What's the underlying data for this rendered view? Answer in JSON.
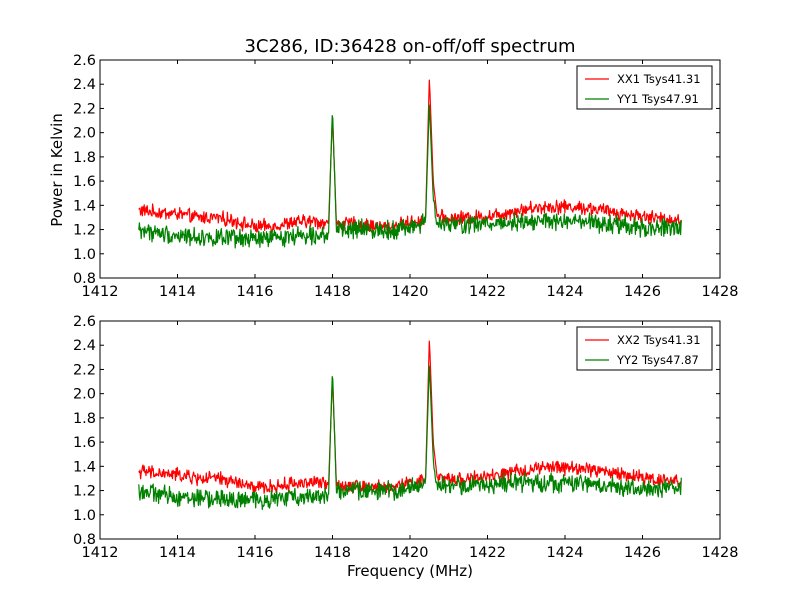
{
  "chart_data": [
    {
      "type": "line",
      "title": "3C286, ID:36428 on-off/off spectrum",
      "xlabel": "",
      "ylabel": "Power in Kelvin",
      "xlim": [
        1412,
        1428
      ],
      "ylim": [
        0.8,
        2.6
      ],
      "xticks": [
        1412,
        1414,
        1416,
        1418,
        1420,
        1422,
        1424,
        1426,
        1428
      ],
      "yticks": [
        "0.8",
        "1.0",
        "1.2",
        "1.4",
        "1.6",
        "1.8",
        "2.0",
        "2.2",
        "2.4",
        "2.6"
      ],
      "legend_position": "top-right",
      "grid": false,
      "series": [
        {
          "name": "XX1 Tsys41.31",
          "color": "#ff0000",
          "x": [
            1413.0,
            1413.5,
            1414.0,
            1414.5,
            1415.0,
            1415.5,
            1416.0,
            1416.5,
            1417.0,
            1417.5,
            1417.9,
            1418.0,
            1418.1,
            1418.5,
            1419.0,
            1419.5,
            1420.0,
            1420.4,
            1420.5,
            1420.6,
            1420.7,
            1421.0,
            1421.5,
            1422.0,
            1422.5,
            1423.0,
            1423.5,
            1424.0,
            1424.5,
            1425.0,
            1425.5,
            1426.0,
            1426.5,
            1427.0
          ],
          "y": [
            1.36,
            1.34,
            1.33,
            1.3,
            1.3,
            1.27,
            1.22,
            1.23,
            1.26,
            1.27,
            1.25,
            2.15,
            1.24,
            1.25,
            1.23,
            1.22,
            1.26,
            1.28,
            2.46,
            1.6,
            1.31,
            1.29,
            1.3,
            1.31,
            1.34,
            1.37,
            1.39,
            1.39,
            1.38,
            1.36,
            1.33,
            1.31,
            1.29,
            1.28
          ]
        },
        {
          "name": "YY1 Tsys47.91",
          "color": "#008000",
          "x": [
            1413.0,
            1413.5,
            1414.0,
            1414.5,
            1415.0,
            1415.5,
            1416.0,
            1416.5,
            1417.0,
            1417.5,
            1417.9,
            1418.0,
            1418.1,
            1418.5,
            1419.0,
            1419.5,
            1420.0,
            1420.4,
            1420.5,
            1420.6,
            1420.7,
            1421.0,
            1421.5,
            1422.0,
            1422.5,
            1423.0,
            1423.5,
            1424.0,
            1424.5,
            1425.0,
            1425.5,
            1426.0,
            1426.5,
            1427.0
          ],
          "y": [
            1.2,
            1.17,
            1.15,
            1.14,
            1.13,
            1.12,
            1.12,
            1.13,
            1.15,
            1.16,
            1.17,
            2.21,
            1.18,
            1.2,
            1.2,
            1.2,
            1.22,
            1.26,
            2.25,
            1.45,
            1.24,
            1.24,
            1.24,
            1.25,
            1.26,
            1.27,
            1.27,
            1.26,
            1.26,
            1.24,
            1.23,
            1.21,
            1.21,
            1.23
          ]
        }
      ]
    },
    {
      "type": "line",
      "title": "",
      "xlabel": "Frequency (MHz)",
      "ylabel": "",
      "xlim": [
        1412,
        1428
      ],
      "ylim": [
        0.8,
        2.6
      ],
      "xticks": [
        1412,
        1414,
        1416,
        1418,
        1420,
        1422,
        1424,
        1426,
        1428
      ],
      "yticks": [
        "0.8",
        "1.0",
        "1.2",
        "1.4",
        "1.6",
        "1.8",
        "2.0",
        "2.2",
        "2.4",
        "2.6"
      ],
      "legend_position": "top-right",
      "grid": false,
      "series": [
        {
          "name": "XX2 Tsys41.31",
          "color": "#ff0000",
          "x": [
            1413.0,
            1413.5,
            1414.0,
            1414.5,
            1415.0,
            1415.5,
            1416.0,
            1416.5,
            1417.0,
            1417.5,
            1417.9,
            1418.0,
            1418.1,
            1418.5,
            1419.0,
            1419.5,
            1420.0,
            1420.4,
            1420.5,
            1420.6,
            1420.7,
            1421.0,
            1421.5,
            1422.0,
            1422.5,
            1423.0,
            1423.5,
            1424.0,
            1424.5,
            1425.0,
            1425.5,
            1426.0,
            1426.5,
            1427.0
          ],
          "y": [
            1.36,
            1.34,
            1.33,
            1.3,
            1.3,
            1.27,
            1.22,
            1.23,
            1.26,
            1.27,
            1.25,
            2.15,
            1.24,
            1.25,
            1.23,
            1.22,
            1.26,
            1.28,
            2.46,
            1.6,
            1.31,
            1.29,
            1.3,
            1.31,
            1.34,
            1.37,
            1.39,
            1.39,
            1.38,
            1.36,
            1.33,
            1.31,
            1.29,
            1.28
          ]
        },
        {
          "name": "YY2 Tsys47.87",
          "color": "#008000",
          "x": [
            1413.0,
            1413.5,
            1414.0,
            1414.5,
            1415.0,
            1415.5,
            1416.0,
            1416.5,
            1417.0,
            1417.5,
            1417.9,
            1418.0,
            1418.1,
            1418.5,
            1419.0,
            1419.5,
            1420.0,
            1420.4,
            1420.5,
            1420.6,
            1420.7,
            1421.0,
            1421.5,
            1422.0,
            1422.5,
            1423.0,
            1423.5,
            1424.0,
            1424.5,
            1425.0,
            1425.5,
            1426.0,
            1426.5,
            1427.0
          ],
          "y": [
            1.2,
            1.17,
            1.15,
            1.14,
            1.13,
            1.12,
            1.12,
            1.13,
            1.15,
            1.16,
            1.17,
            2.21,
            1.18,
            1.2,
            1.2,
            1.2,
            1.22,
            1.26,
            2.25,
            1.45,
            1.24,
            1.24,
            1.24,
            1.25,
            1.26,
            1.27,
            1.27,
            1.26,
            1.26,
            1.24,
            1.23,
            1.21,
            1.21,
            1.23
          ]
        }
      ]
    }
  ]
}
